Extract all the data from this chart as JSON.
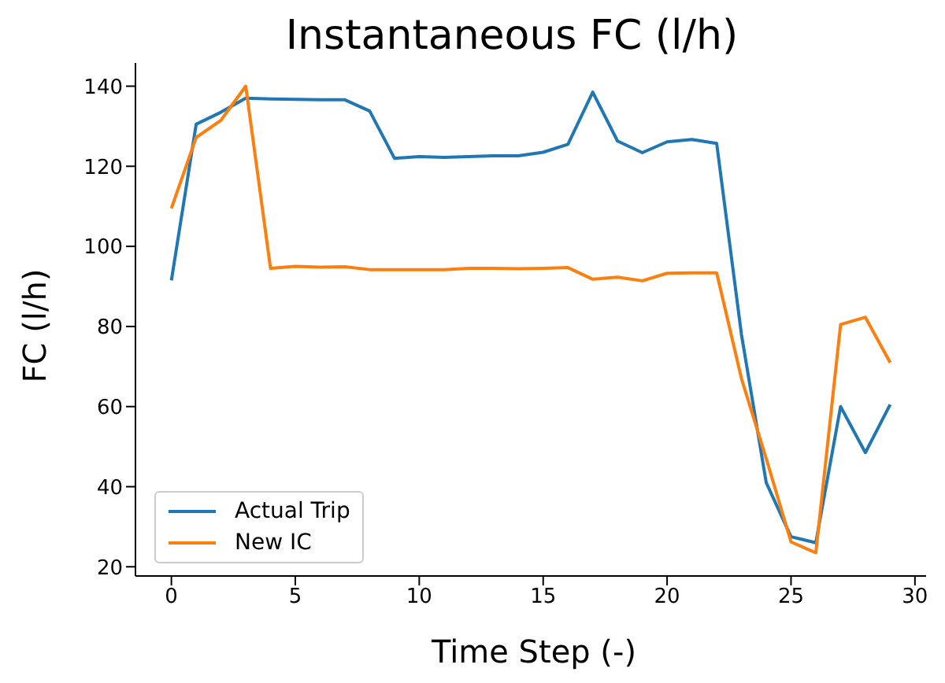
{
  "chart_data": {
    "type": "line",
    "title": "Instantaneous FC (l/h)",
    "xlabel": "Time Step (-)",
    "ylabel": "FC (l/h)",
    "x": [
      0,
      1,
      2,
      3,
      4,
      5,
      6,
      7,
      8,
      9,
      10,
      11,
      12,
      13,
      14,
      15,
      16,
      17,
      18,
      19,
      20,
      21,
      22,
      23,
      24,
      25,
      26,
      27,
      28,
      29
    ],
    "series": [
      {
        "name": "Actual Trip",
        "color": "#1f77b4",
        "values": [
          91.5,
          130.5,
          133.5,
          137,
          136.8,
          136.7,
          136.6,
          136.6,
          133.8,
          122,
          122.4,
          122.2,
          122.4,
          122.6,
          122.6,
          123.5,
          125.5,
          138.5,
          126.3,
          123.4,
          126.1,
          126.7,
          125.7,
          78,
          41,
          27.5,
          26,
          60,
          48.5,
          60.5
        ]
      },
      {
        "name": "New IC",
        "color": "#ff7f0e",
        "values": [
          109.5,
          127.2,
          131.5,
          140,
          94.5,
          95,
          94.8,
          94.9,
          94.2,
          94.2,
          94.2,
          94.2,
          94.5,
          94.5,
          94.4,
          94.5,
          94.7,
          91.8,
          92.3,
          91.4,
          93.3,
          93.4,
          93.4,
          67,
          47,
          26.2,
          23.5,
          80.5,
          82.3,
          71
        ]
      }
    ],
    "xlim": [
      -1.45,
      30.45
    ],
    "ylim": [
      17.7,
      145.8
    ],
    "xticks": [
      0,
      5,
      10,
      15,
      20,
      25,
      30
    ],
    "yticks": [
      20,
      40,
      60,
      80,
      100,
      120,
      140
    ],
    "grid": false,
    "legend": "bottom left",
    "marker": "none",
    "line_style": "solid"
  }
}
